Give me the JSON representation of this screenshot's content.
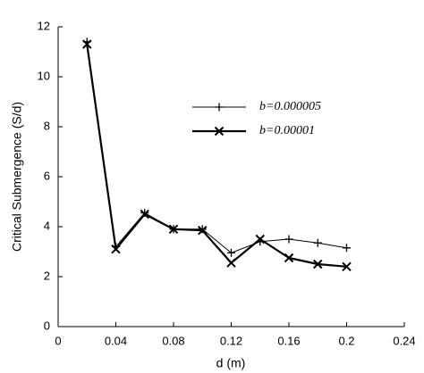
{
  "chart_data": {
    "type": "line",
    "x_label": "d (m)",
    "y_label": "Critical Submergence (S/d)",
    "x": [
      0.02,
      0.04,
      0.06,
      0.08,
      0.1,
      0.12,
      0.14,
      0.16,
      0.18,
      0.2
    ],
    "series": [
      {
        "name": "b=0.000005",
        "color": "#000000",
        "marker": "plus",
        "line_width": 1,
        "values": [
          11.4,
          3.2,
          4.55,
          3.9,
          3.9,
          2.95,
          3.4,
          3.5,
          3.35,
          3.15
        ]
      },
      {
        "name": "b=0.00001",
        "color": "#000000",
        "marker": "cross",
        "line_width": 2.2,
        "values": [
          11.3,
          3.1,
          4.5,
          3.9,
          3.85,
          2.55,
          3.5,
          2.75,
          2.5,
          2.4
        ]
      }
    ],
    "xlim": [
      0,
      0.24
    ],
    "xticks": [
      0,
      0.04,
      0.08,
      0.12,
      0.16,
      0.2,
      0.24
    ],
    "ylim": [
      0,
      12
    ],
    "yticks": [
      0,
      2,
      4,
      6,
      8,
      10,
      12
    ],
    "grid": false
  }
}
